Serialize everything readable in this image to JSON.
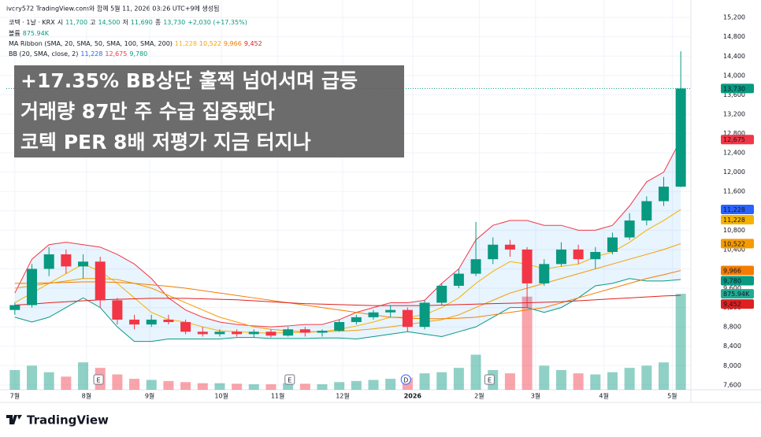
{
  "chart_data": {
    "type": "candlestick",
    "credit": "ivory572 TradingView.com와 함께 5월 11, 2026 03:26 UTC+9에 생성됨",
    "symbol": "코텍 · 1날 · KRX",
    "ohlc_header": [
      {
        "label": "시",
        "value": "11,700"
      },
      {
        "label": "고",
        "value": "14,500"
      },
      {
        "label": "저",
        "value": "11,690"
      },
      {
        "label": "종",
        "value": "13,730"
      }
    ],
    "change": "+2,030 (+17.35%)",
    "volume_title": "볼륨",
    "volume_label": "875.94K",
    "overlay": [
      "+17.35% BB상단 훌쩍 넘어서며 급등",
      "거래량 87만 주 수급 집중됐다",
      "코텍 PER 8배 저평가 지금 터지나"
    ],
    "logo": "TradingView",
    "up_color": "#089981",
    "down_color": "#f23645",
    "xlim": [
      -0.5,
      39.5
    ],
    "xticks": [
      {
        "value": 0,
        "label": "7월"
      },
      {
        "value": 4.2,
        "label": "8월"
      },
      {
        "value": 7.9,
        "label": "9월"
      },
      {
        "value": 12.1,
        "label": "10월"
      },
      {
        "value": 15.4,
        "label": "11월"
      },
      {
        "value": 19.2,
        "label": "12월"
      },
      {
        "value": 23.3,
        "label": "2026"
      },
      {
        "value": 27.2,
        "label": "2월"
      },
      {
        "value": 30.5,
        "label": "3월"
      },
      {
        "value": 34.5,
        "label": "4월"
      },
      {
        "value": 38.5,
        "label": "5월"
      }
    ],
    "ylim": [
      7500,
      15430
    ],
    "yticks": [
      {
        "value": 7600,
        "label": "7,600"
      },
      {
        "value": 8000,
        "label": "8,000"
      },
      {
        "value": 8400,
        "label": "8,400"
      },
      {
        "value": 8800,
        "label": "8,800"
      },
      {
        "value": 9200,
        "label": "9,200"
      },
      {
        "value": 9600,
        "label": "9,600"
      },
      {
        "value": 10000,
        "label": "10,000"
      },
      {
        "value": 10400,
        "label": "10,400"
      },
      {
        "value": 10800,
        "label": "10,800"
      },
      {
        "value": 11200,
        "label": "11,200"
      },
      {
        "value": 11600,
        "label": "11,600"
      },
      {
        "value": 12000,
        "label": "12,000"
      },
      {
        "value": 12400,
        "label": "12,400"
      },
      {
        "value": 12800,
        "label": "12,800"
      },
      {
        "value": 13200,
        "label": "13,200"
      },
      {
        "value": 13600,
        "label": "13,600"
      },
      {
        "value": 14000,
        "label": "14,000"
      },
      {
        "value": 14400,
        "label": "14,400"
      },
      {
        "value": 14800,
        "label": "14,800"
      },
      {
        "value": 15200,
        "label": "15,200"
      }
    ],
    "grid": true,
    "vlim": [
      0,
      3500000
    ],
    "open": [
      9150,
      9250,
      10000,
      10300,
      10050,
      10150,
      9350,
      8950,
      8850,
      8950,
      8900,
      8700,
      8650,
      8700,
      8650,
      8700,
      8620,
      8750,
      8680,
      8720,
      8900,
      9000,
      9100,
      9150,
      8800,
      9300,
      9650,
      9900,
      10200,
      10500,
      10400,
      9700,
      10100,
      10400,
      10200,
      10350,
      10650,
      11000,
      11400,
      11700
    ],
    "high": [
      9300,
      10100,
      10450,
      10400,
      10300,
      10250,
      9400,
      9050,
      9050,
      9050,
      8950,
      8800,
      8750,
      8750,
      8750,
      8750,
      8800,
      8800,
      8750,
      8950,
      9050,
      9150,
      9250,
      9200,
      9350,
      9700,
      10000,
      10970,
      10650,
      10600,
      10450,
      10200,
      10550,
      10500,
      10450,
      10750,
      11150,
      11500,
      11900,
      14500
    ],
    "low": [
      9050,
      9200,
      9850,
      9900,
      9800,
      9200,
      8850,
      8750,
      8800,
      8850,
      8650,
      8600,
      8600,
      8600,
      8580,
      8580,
      8600,
      8600,
      8600,
      8700,
      8850,
      8950,
      9000,
      8700,
      8750,
      9250,
      9600,
      9850,
      10100,
      10250,
      9200,
      9650,
      10050,
      10100,
      10000,
      10300,
      10600,
      10900,
      11300,
      11690
    ],
    "close": [
      9250,
      10000,
      10300,
      10050,
      10150,
      9350,
      8950,
      8850,
      8950,
      8900,
      8700,
      8650,
      8700,
      8650,
      8700,
      8620,
      8750,
      8680,
      8720,
      8900,
      9000,
      9100,
      9150,
      8800,
      9300,
      9650,
      9900,
      10200,
      10500,
      10400,
      9700,
      10100,
      10400,
      10200,
      10350,
      10650,
      11000,
      11400,
      11700,
      13730
    ],
    "last_label": "13,730",
    "volume": [
      180000,
      220000,
      160000,
      120000,
      250000,
      200000,
      140000,
      100000,
      90000,
      80000,
      70000,
      60000,
      60000,
      55000,
      50000,
      50000,
      60000,
      55000,
      50000,
      70000,
      80000,
      90000,
      100000,
      110000,
      150000,
      160000,
      200000,
      320000,
      180000,
      150000,
      850000,
      220000,
      180000,
      150000,
      140000,
      160000,
      200000,
      220000,
      250000,
      875940
    ],
    "ma_ribbon": {
      "title": "MA Ribbon (SMA, 20, SMA, 50, SMA, 100, SMA, 200)",
      "series": [
        {
          "color": "#f5b200",
          "last_label": "11,228",
          "values": [
            9300,
            9500,
            9700,
            9900,
            10100,
            9950,
            9700,
            9400,
            9100,
            8950,
            8900,
            8800,
            8720,
            8700,
            8680,
            8670,
            8680,
            8690,
            8700,
            8750,
            8820,
            8900,
            9000,
            9000,
            9050,
            9200,
            9400,
            9700,
            9950,
            10150,
            10100,
            10000,
            10050,
            10100,
            10250,
            10350,
            10550,
            10800,
            11000,
            11228
          ]
        },
        {
          "color": "#f59b00",
          "last_label": "10,522",
          "values": [
            9600,
            9650,
            9700,
            9750,
            9800,
            9800,
            9780,
            9700,
            9600,
            9450,
            9300,
            9150,
            9000,
            8900,
            8800,
            8750,
            8720,
            8700,
            8700,
            8710,
            8730,
            8760,
            8800,
            8850,
            8900,
            8950,
            9050,
            9200,
            9350,
            9500,
            9600,
            9700,
            9800,
            9900,
            10000,
            10100,
            10200,
            10300,
            10400,
            10522
          ]
        },
        {
          "color": "#f57c00",
          "last_label": "9,966",
          "values": [
            9700,
            9700,
            9710,
            9720,
            9730,
            9730,
            9720,
            9700,
            9670,
            9640,
            9600,
            9550,
            9500,
            9450,
            9400,
            9350,
            9300,
            9250,
            9200,
            9150,
            9100,
            9050,
            9000,
            8980,
            8970,
            8970,
            8980,
            9000,
            9050,
            9100,
            9150,
            9200,
            9300,
            9400,
            9500,
            9600,
            9700,
            9800,
            9880,
            9966
          ]
        },
        {
          "color": "#e02020",
          "last_label": "9,452",
          "values": [
            9250,
            9270,
            9300,
            9320,
            9340,
            9360,
            9370,
            9380,
            9390,
            9390,
            9390,
            9380,
            9370,
            9360,
            9340,
            9320,
            9300,
            9280,
            9270,
            9260,
            9250,
            9240,
            9240,
            9240,
            9240,
            9250,
            9260,
            9270,
            9280,
            9290,
            9300,
            9310,
            9320,
            9340,
            9360,
            9380,
            9400,
            9420,
            9440,
            9452
          ]
        }
      ]
    },
    "bb": {
      "title": "BB (20, SMA, close, 2)",
      "fill": "rgba(33,150,243,0.10)",
      "basis": {
        "color": "#2962ff",
        "last_label": "11,228"
      },
      "upper": {
        "color": "#f23645",
        "last_label": "12,675",
        "values": [
          9500,
          10200,
          10500,
          10550,
          10500,
          10450,
          10300,
          10100,
          9800,
          9400,
          9150,
          9000,
          8900,
          8850,
          8820,
          8800,
          8820,
          8850,
          8850,
          8950,
          9100,
          9200,
          9300,
          9300,
          9350,
          9700,
          10000,
          10600,
          10900,
          11000,
          11000,
          10900,
          10900,
          10800,
          10800,
          10900,
          11300,
          11800,
          12000,
          12675
        ]
      },
      "lower": {
        "color": "#089981",
        "last_label": "9,780",
        "values": [
          9000,
          8900,
          9000,
          9200,
          9400,
          9200,
          8800,
          8500,
          8500,
          8550,
          8550,
          8550,
          8550,
          8580,
          8580,
          8560,
          8560,
          8560,
          8570,
          8570,
          8550,
          8600,
          8650,
          8700,
          8650,
          8600,
          8700,
          8800,
          9000,
          9200,
          9200,
          9100,
          9200,
          9400,
          9650,
          9700,
          9800,
          9750,
          9750,
          9780
        ]
      }
    },
    "events": [
      {
        "label": "E",
        "at": 4.9
      },
      {
        "label": "E",
        "at": 16.1
      },
      {
        "label": "D",
        "at": 22.9
      },
      {
        "label": "E",
        "at": 27.8
      }
    ]
  }
}
